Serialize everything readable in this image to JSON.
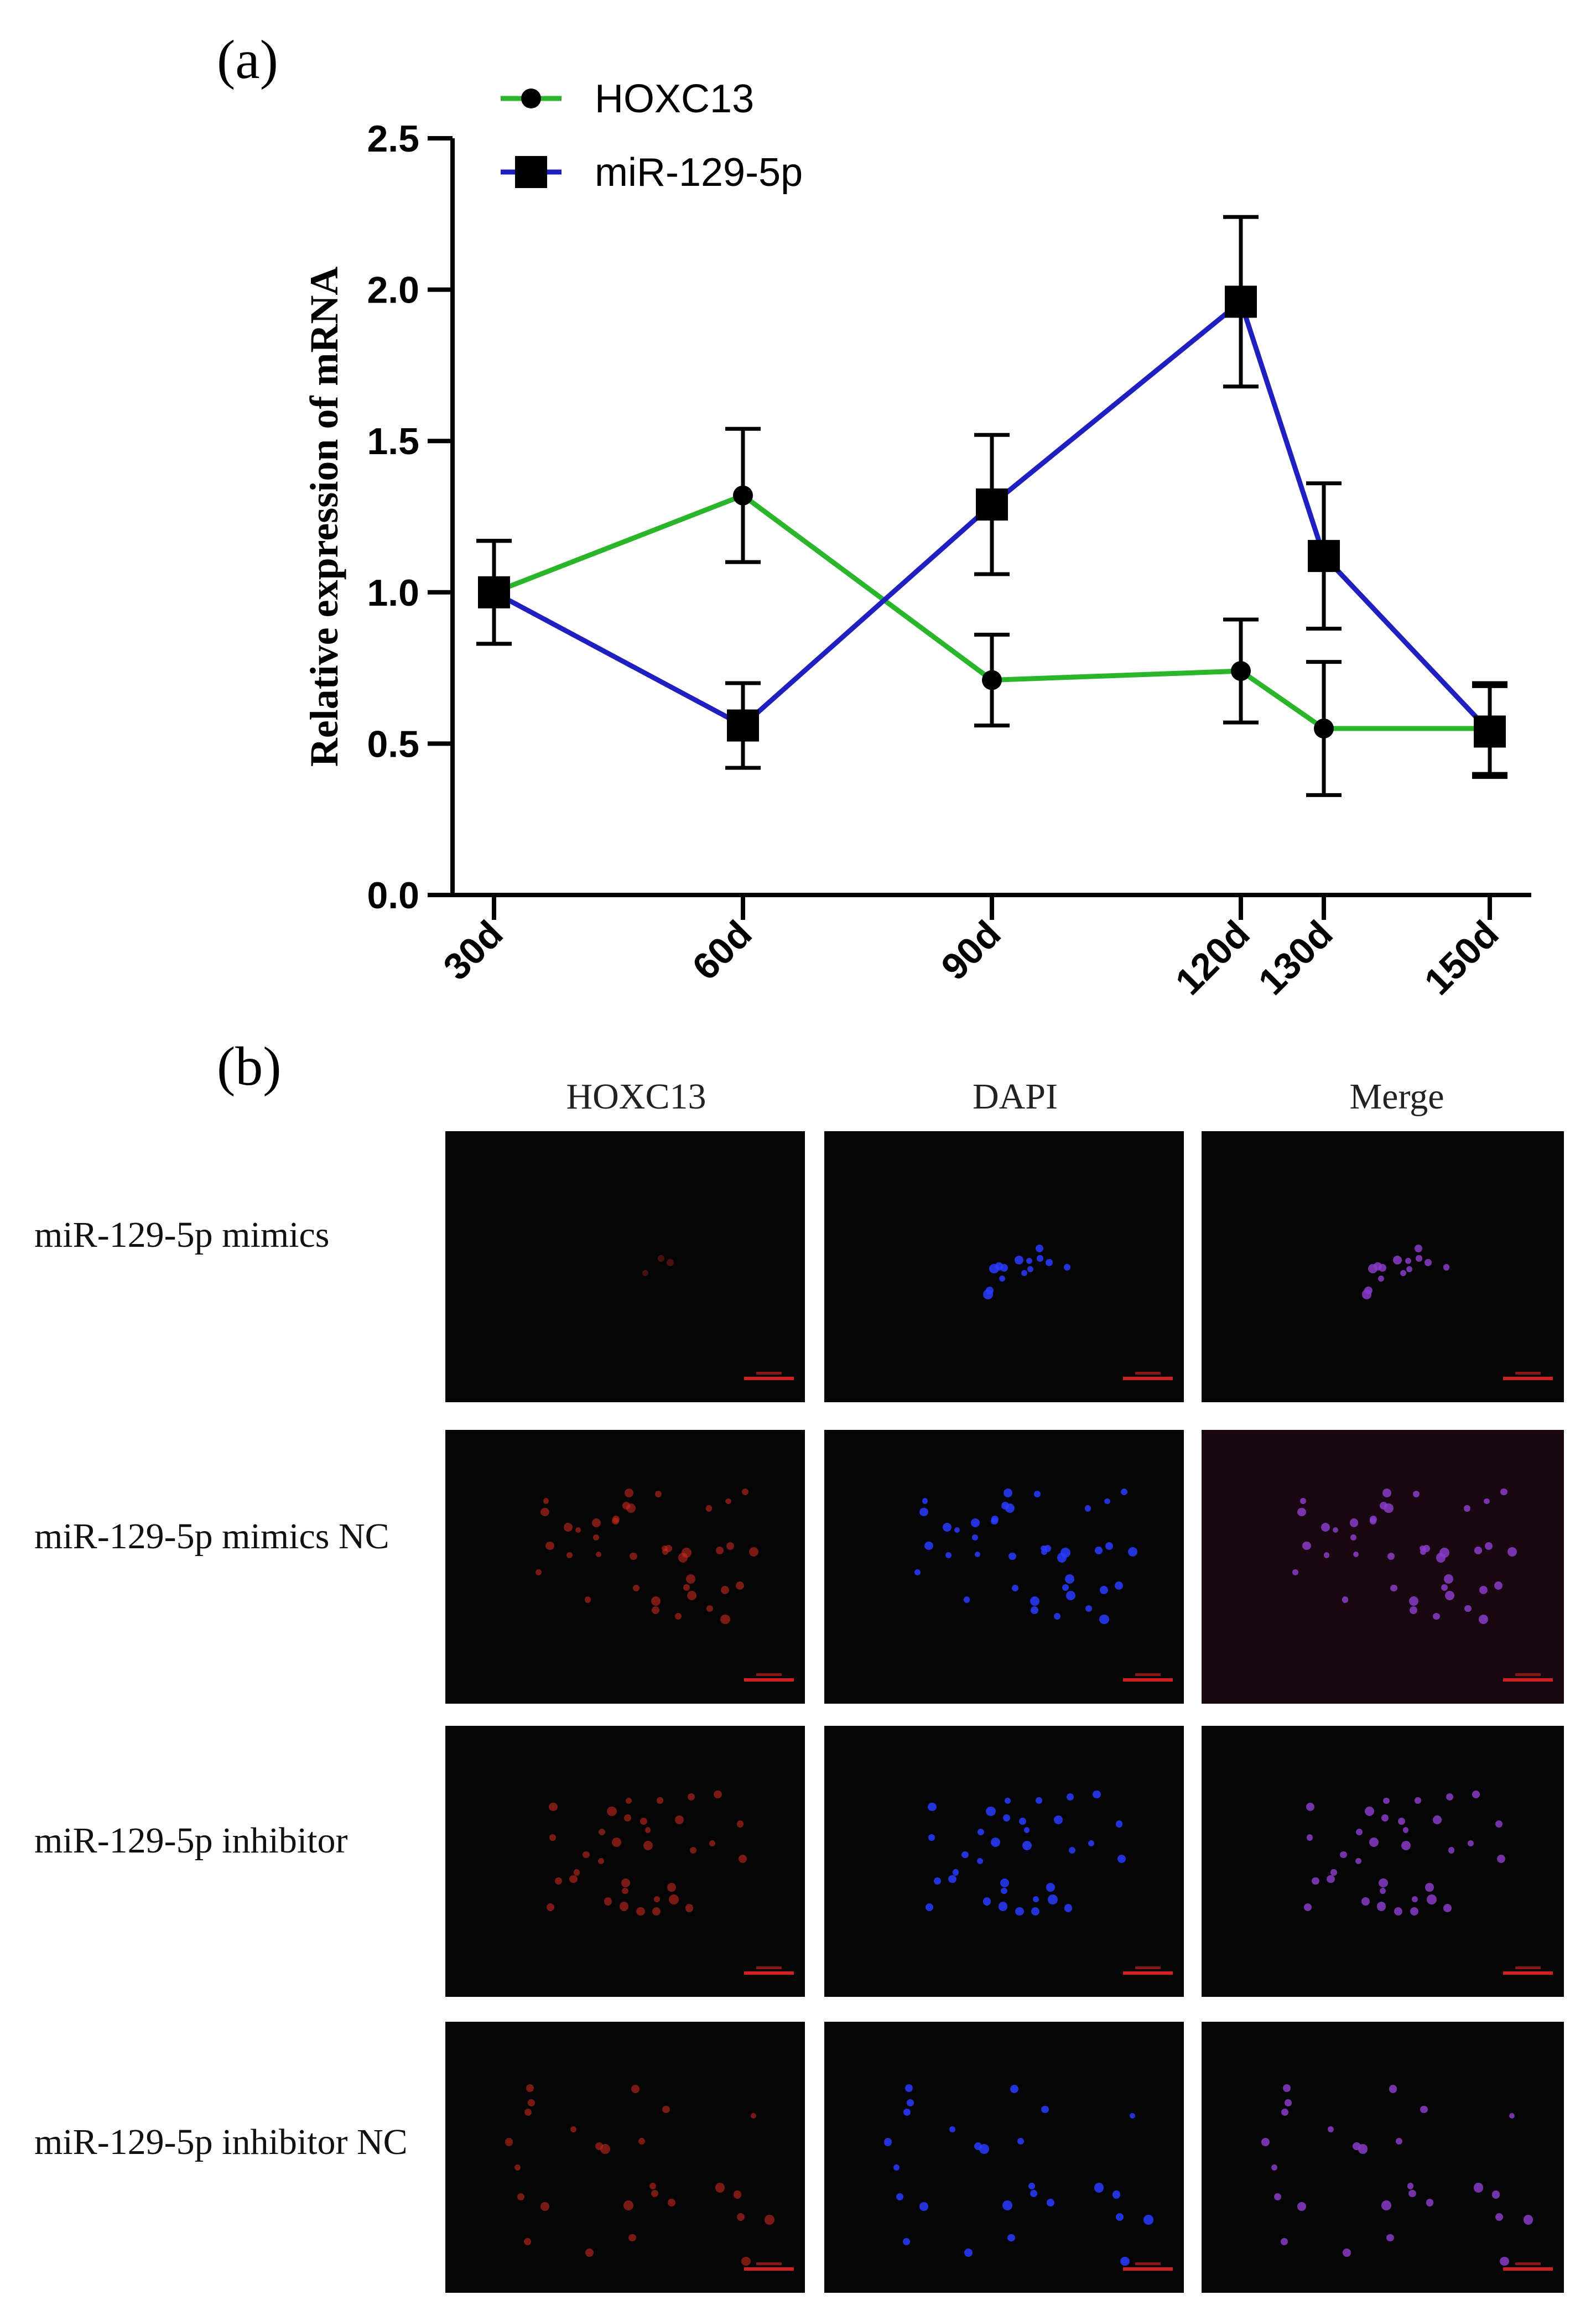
{
  "panel_labels": {
    "a": "(a)",
    "b": "(b)"
  },
  "chart_data": {
    "type": "line",
    "x": [
      "30d",
      "60d",
      "90d",
      "120d",
      "130d",
      "150d"
    ],
    "x_numeric": [
      30,
      60,
      90,
      120,
      130,
      150
    ],
    "ylabel": "Relative expression of mRNA",
    "xlabel": "",
    "ylim": [
      0,
      2.5
    ],
    "yticks": [
      "0.0",
      "0.5",
      "1.0",
      "1.5",
      "2.0",
      "2.5"
    ],
    "legend_position": "top-left",
    "series": [
      {
        "name": "HOXC13",
        "color": "#2bb52b",
        "marker": "circle",
        "values": [
          1.0,
          1.32,
          0.71,
          0.74,
          0.55,
          0.55
        ],
        "errors": [
          0.17,
          0.22,
          0.15,
          0.17,
          0.22,
          0.15
        ]
      },
      {
        "name": "miR-129-5p",
        "color": "#2020c0",
        "marker": "square",
        "values": [
          1.0,
          0.56,
          1.29,
          1.96,
          1.12,
          0.54
        ],
        "errors": [
          0.17,
          0.14,
          0.23,
          0.28,
          0.24,
          0.15
        ]
      }
    ]
  },
  "microscopy": {
    "columns": [
      "HOXC13",
      "DAPI",
      "Merge"
    ],
    "rows": [
      "miR-129-5p mimics",
      "miR-129-5p mimics NC",
      "miR-129-5p inhibitor",
      "miR-129-5p inhibitor NC"
    ],
    "channel_colors": {
      "HOXC13": "#c8281e",
      "DAPI": "#2a3cff",
      "Merge": "#8a3cc8"
    }
  }
}
